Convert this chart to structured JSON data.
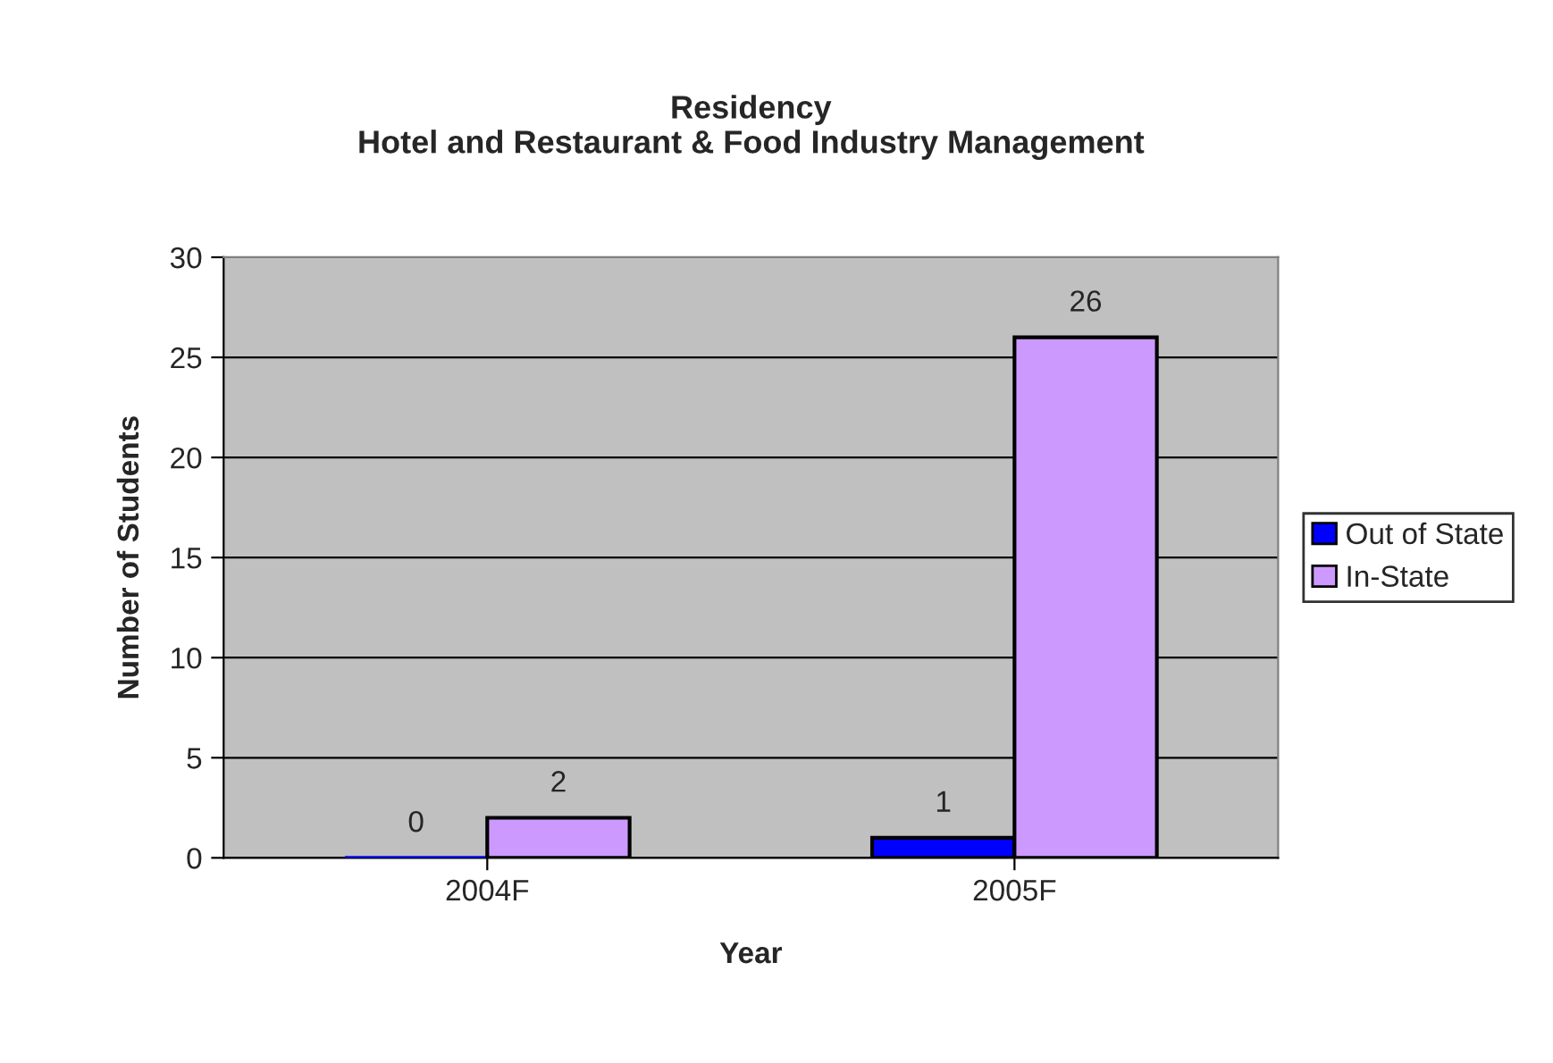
{
  "chart_data": {
    "type": "bar",
    "title": "Residency\nHotel and Restaurant & Food Industry Management",
    "xlabel": "Year",
    "ylabel": "Number of Students",
    "categories": [
      "2004F",
      "2005F"
    ],
    "series": [
      {
        "name": "Out of State",
        "color": "#0000ff",
        "values": [
          0,
          1
        ]
      },
      {
        "name": "In-State",
        "color": "#cc99ff",
        "values": [
          2,
          26
        ]
      }
    ],
    "ylim": [
      0,
      30
    ],
    "yticks": [
      0,
      5,
      10,
      15,
      20,
      25,
      30
    ],
    "grid": "y",
    "legend": "right",
    "data_labels": true
  }
}
